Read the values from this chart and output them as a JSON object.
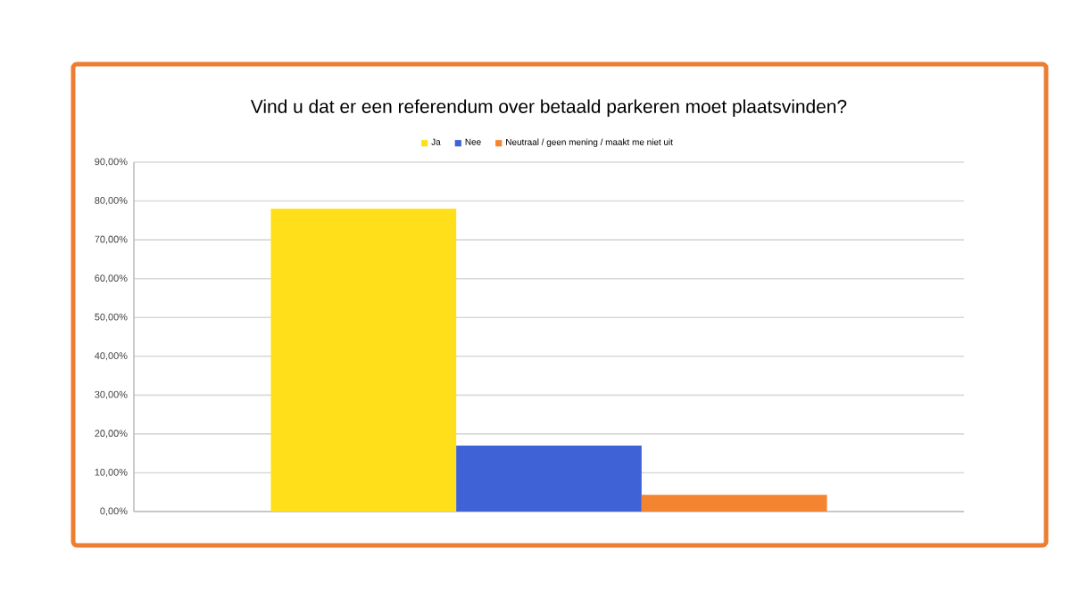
{
  "chart_data": {
    "type": "bar",
    "title": "Vind u dat er een referendum over betaald parkeren moet plaatsvinden?",
    "categories": [
      null
    ],
    "series": [
      {
        "name": "Ja",
        "color": "#ffdf19",
        "values": [
          78
        ]
      },
      {
        "name": "Nee",
        "color": "#3f62d6",
        "values": [
          17
        ]
      },
      {
        "name": "Neutraal / geen mening / maakt me niet uit",
        "color": "#f58431",
        "values": [
          4.3
        ]
      }
    ],
    "ylim": [
      0,
      90
    ],
    "yticks": [
      {
        "value": 0,
        "label": "0,00%"
      },
      {
        "value": 10,
        "label": "10,00%"
      },
      {
        "value": 20,
        "label": "20,00%"
      },
      {
        "value": 30,
        "label": "30,00%"
      },
      {
        "value": 40,
        "label": "40,00%"
      },
      {
        "value": 50,
        "label": "50,00%"
      },
      {
        "value": 60,
        "label": "60,00%"
      },
      {
        "value": 70,
        "label": "70,00%"
      },
      {
        "value": 80,
        "label": "80,00%"
      },
      {
        "value": 90,
        "label": "90,00%"
      }
    ],
    "grid": "y",
    "legend": "top"
  }
}
